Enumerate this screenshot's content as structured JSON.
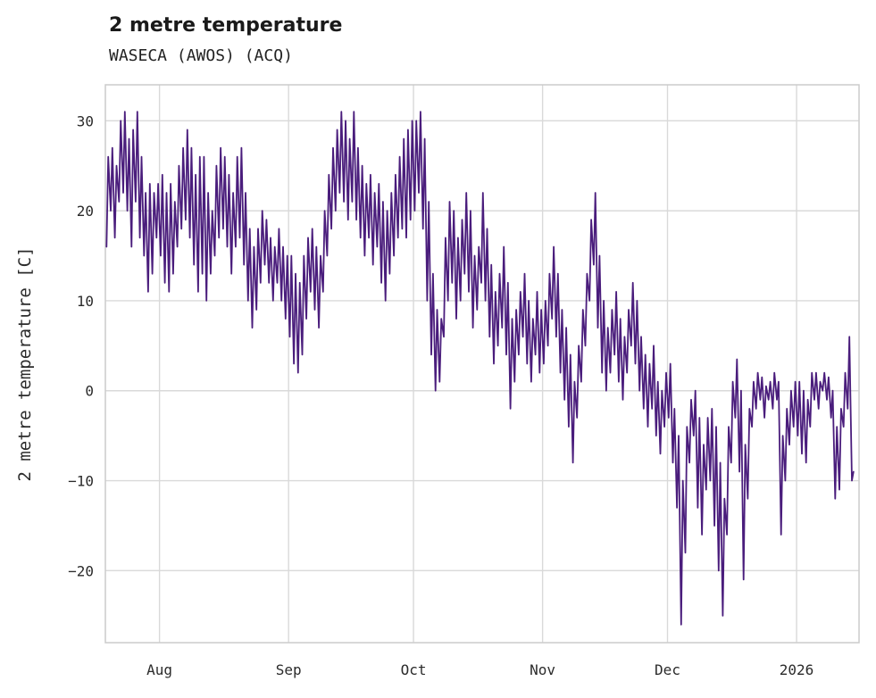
{
  "chart_data": {
    "type": "line",
    "title": "2 metre temperature",
    "subtitle": "WASECA (AWOS) (ACQ)",
    "ylabel": "2 metre temperature [C]",
    "xlabel": "",
    "grid": true,
    "legend": false,
    "line_color": "#4a1d7c",
    "grid_color": "#d9d9d9",
    "border_color": "#cccccc",
    "text_color": "#2b2b2b",
    "ylim": [
      -28,
      34
    ],
    "yticks": [
      30,
      20,
      10,
      0,
      -10,
      -20
    ],
    "x_span_days": 181,
    "xticks": [
      {
        "day": 13,
        "label": "Aug"
      },
      {
        "day": 44,
        "label": "Sep"
      },
      {
        "day": 74,
        "label": "Oct"
      },
      {
        "day": 105,
        "label": "Nov"
      },
      {
        "day": 135,
        "label": "Dec"
      },
      {
        "day": 166,
        "label": "2026"
      }
    ],
    "series_daily_minmax": [
      [
        16,
        26
      ],
      [
        20,
        27
      ],
      [
        17,
        25
      ],
      [
        21,
        30
      ],
      [
        22,
        31
      ],
      [
        20,
        28
      ],
      [
        16,
        29
      ],
      [
        21,
        31
      ],
      [
        17,
        26
      ],
      [
        15,
        22
      ],
      [
        11,
        23
      ],
      [
        13,
        22
      ],
      [
        17,
        23
      ],
      [
        15,
        24
      ],
      [
        12,
        22
      ],
      [
        11,
        23
      ],
      [
        13,
        21
      ],
      [
        16,
        25
      ],
      [
        18,
        27
      ],
      [
        19,
        29
      ],
      [
        17,
        27
      ],
      [
        14,
        24
      ],
      [
        11,
        26
      ],
      [
        13,
        26
      ],
      [
        10,
        22
      ],
      [
        13,
        20
      ],
      [
        15,
        25
      ],
      [
        17,
        27
      ],
      [
        18,
        26
      ],
      [
        16,
        24
      ],
      [
        13,
        22
      ],
      [
        16,
        26
      ],
      [
        17,
        27
      ],
      [
        14,
        22
      ],
      [
        10,
        18
      ],
      [
        7,
        16
      ],
      [
        9,
        18
      ],
      [
        12,
        20
      ],
      [
        14,
        19
      ],
      [
        12,
        17
      ],
      [
        10,
        16
      ],
      [
        12,
        18
      ],
      [
        10,
        16
      ],
      [
        8,
        15
      ],
      [
        6,
        15
      ],
      [
        3,
        13
      ],
      [
        2,
        12
      ],
      [
        4,
        15
      ],
      [
        8,
        17
      ],
      [
        11,
        18
      ],
      [
        9,
        16
      ],
      [
        7,
        15
      ],
      [
        11,
        20
      ],
      [
        15,
        24
      ],
      [
        18,
        27
      ],
      [
        20,
        29
      ],
      [
        22,
        31
      ],
      [
        21,
        30
      ],
      [
        19,
        28
      ],
      [
        21,
        31
      ],
      [
        19,
        27
      ],
      [
        17,
        25
      ],
      [
        15,
        23
      ],
      [
        17,
        24
      ],
      [
        14,
        22
      ],
      [
        16,
        23
      ],
      [
        12,
        21
      ],
      [
        10,
        20
      ],
      [
        13,
        22
      ],
      [
        15,
        24
      ],
      [
        17,
        26
      ],
      [
        18,
        28
      ],
      [
        17,
        29
      ],
      [
        19,
        30
      ],
      [
        20,
        30
      ],
      [
        22,
        31
      ],
      [
        18,
        28
      ],
      [
        10,
        21
      ],
      [
        4,
        13
      ],
      [
        0,
        9
      ],
      [
        1,
        8
      ],
      [
        6,
        17
      ],
      [
        10,
        21
      ],
      [
        12,
        20
      ],
      [
        8,
        17
      ],
      [
        10,
        19
      ],
      [
        13,
        22
      ],
      [
        11,
        20
      ],
      [
        7,
        15
      ],
      [
        9,
        16
      ],
      [
        12,
        22
      ],
      [
        10,
        18
      ],
      [
        6,
        14
      ],
      [
        3,
        11
      ],
      [
        5,
        13
      ],
      [
        7,
        16
      ],
      [
        4,
        12
      ],
      [
        -2,
        8
      ],
      [
        1,
        9
      ],
      [
        4,
        11
      ],
      [
        6,
        13
      ],
      [
        3,
        10
      ],
      [
        1,
        8
      ],
      [
        4,
        11
      ],
      [
        2,
        9
      ],
      [
        3,
        10
      ],
      [
        5,
        13
      ],
      [
        8,
        16
      ],
      [
        6,
        13
      ],
      [
        2,
        9
      ],
      [
        -1,
        7
      ],
      [
        -4,
        4
      ],
      [
        -8,
        1
      ],
      [
        -3,
        5
      ],
      [
        1,
        9
      ],
      [
        5,
        13
      ],
      [
        10,
        19
      ],
      [
        14,
        22
      ],
      [
        7,
        15
      ],
      [
        2,
        10
      ],
      [
        0,
        7
      ],
      [
        2,
        9
      ],
      [
        4,
        11
      ],
      [
        1,
        8
      ],
      [
        -1,
        6
      ],
      [
        2,
        9
      ],
      [
        5,
        12
      ],
      [
        3,
        10
      ],
      [
        0,
        6
      ],
      [
        -2,
        4
      ],
      [
        -4,
        3
      ],
      [
        -2,
        5
      ],
      [
        -5,
        1
      ],
      [
        -7,
        0
      ],
      [
        -4,
        2
      ],
      [
        -3,
        3
      ],
      [
        -8,
        -2
      ],
      [
        -13,
        -5
      ],
      [
        -26,
        -10
      ],
      [
        -18,
        -4
      ],
      [
        -8,
        -1
      ],
      [
        -5,
        0
      ],
      [
        -13,
        -3
      ],
      [
        -16,
        -6
      ],
      [
        -11,
        -3
      ],
      [
        -10,
        -2
      ],
      [
        -15,
        -4
      ],
      [
        -20,
        -8
      ],
      [
        -25,
        -12
      ],
      [
        -16,
        -4
      ],
      [
        -8,
        1
      ],
      [
        -3,
        3.5
      ],
      [
        -9,
        0
      ],
      [
        -21,
        -6
      ],
      [
        -12,
        -2
      ],
      [
        -4,
        1
      ],
      [
        -2,
        2
      ],
      [
        -1,
        1.5
      ],
      [
        -3,
        0.5
      ],
      [
        -1,
        1
      ],
      [
        -2,
        2
      ],
      [
        -1,
        1
      ],
      [
        -16,
        -5
      ],
      [
        -10,
        -2
      ],
      [
        -6,
        0
      ],
      [
        -4,
        1
      ],
      [
        -5,
        1
      ],
      [
        -7,
        0
      ],
      [
        -8,
        -1
      ],
      [
        -4,
        2
      ],
      [
        -1,
        2
      ],
      [
        -2,
        1
      ],
      [
        0,
        2
      ],
      [
        -1,
        1.5
      ],
      [
        -3,
        0
      ],
      [
        -12,
        -4
      ],
      [
        -11,
        -2
      ],
      [
        -4,
        2
      ],
      [
        -2,
        6
      ],
      [
        -10,
        -9
      ]
    ]
  }
}
